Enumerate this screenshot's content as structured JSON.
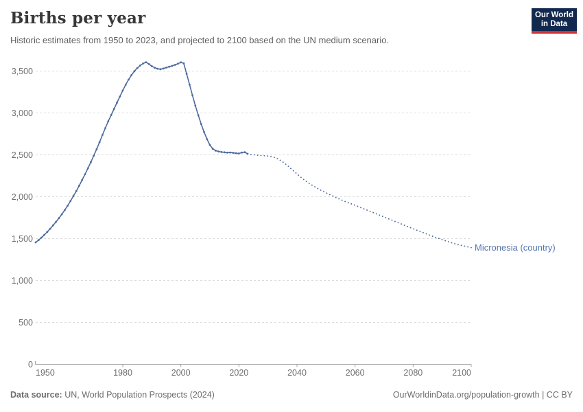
{
  "header": {
    "title": "Births per year",
    "subtitle": "Historic estimates from 1950 to 2023, and projected to 2100 based on the UN medium scenario.",
    "logo": {
      "line1": "Our World",
      "line2": "in Data"
    }
  },
  "footer": {
    "source_label": "Data source:",
    "source_text": " UN, World Population Prospects (2024)",
    "right_text": "OurWorldinData.org/population-growth | CC BY"
  },
  "chart_data": {
    "type": "line",
    "title": "Births per year",
    "entity_label": "Micronesia (country)",
    "xlabel": "",
    "ylabel": "",
    "x_domain": [
      1950,
      2100
    ],
    "y_domain": [
      0,
      3500
    ],
    "grid": true,
    "legend_position": "end-of-line-label",
    "x_ticks": [
      1950,
      1980,
      2000,
      2020,
      2040,
      2060,
      2080,
      2100
    ],
    "y_ticks": [
      {
        "value": 0,
        "label": "0"
      },
      {
        "value": 500,
        "label": "500"
      },
      {
        "value": 1000,
        "label": "1,000"
      },
      {
        "value": 1500,
        "label": "1,500"
      },
      {
        "value": 2000,
        "label": "2,000"
      },
      {
        "value": 2500,
        "label": "2,500"
      },
      {
        "value": 3000,
        "label": "3,000"
      },
      {
        "value": 3500,
        "label": "3,500"
      }
    ],
    "colors": {
      "line": "#4c6a9c",
      "entity_label": "#5577ad",
      "grid": "#dcdcdc",
      "axis": "#a1a1a1",
      "tick_text": "#6e6e6e",
      "logo_bg": "#12294f",
      "logo_red": "#cf3235"
    },
    "series": [
      {
        "name": "historic",
        "style": "solid",
        "points": [
          [
            1950,
            1455
          ],
          [
            1951,
            1482
          ],
          [
            1952,
            1512
          ],
          [
            1953,
            1545
          ],
          [
            1954,
            1580
          ],
          [
            1955,
            1618
          ],
          [
            1956,
            1658
          ],
          [
            1957,
            1700
          ],
          [
            1958,
            1744
          ],
          [
            1959,
            1790
          ],
          [
            1960,
            1840
          ],
          [
            1961,
            1893
          ],
          [
            1962,
            1950
          ],
          [
            1963,
            2008
          ],
          [
            1964,
            2068
          ],
          [
            1965,
            2132
          ],
          [
            1966,
            2200
          ],
          [
            1967,
            2268
          ],
          [
            1968,
            2340
          ],
          [
            1969,
            2412
          ],
          [
            1970,
            2490
          ],
          [
            1971,
            2568
          ],
          [
            1972,
            2650
          ],
          [
            1973,
            2738
          ],
          [
            1974,
            2820
          ],
          [
            1975,
            2900
          ],
          [
            1976,
            2975
          ],
          [
            1977,
            3048
          ],
          [
            1978,
            3122
          ],
          [
            1979,
            3196
          ],
          [
            1980,
            3268
          ],
          [
            1981,
            3336
          ],
          [
            1982,
            3398
          ],
          [
            1983,
            3452
          ],
          [
            1984,
            3498
          ],
          [
            1985,
            3536
          ],
          [
            1986,
            3566
          ],
          [
            1987,
            3590
          ],
          [
            1988,
            3606
          ],
          [
            1989,
            3584
          ],
          [
            1990,
            3558
          ],
          [
            1991,
            3540
          ],
          [
            1992,
            3528
          ],
          [
            1993,
            3522
          ],
          [
            1994,
            3530
          ],
          [
            1995,
            3542
          ],
          [
            1996,
            3552
          ],
          [
            1997,
            3562
          ],
          [
            1998,
            3574
          ],
          [
            1999,
            3588
          ],
          [
            2000,
            3604
          ],
          [
            2001,
            3592
          ],
          [
            2002,
            3466
          ],
          [
            2003,
            3338
          ],
          [
            2004,
            3210
          ],
          [
            2005,
            3088
          ],
          [
            2006,
            2974
          ],
          [
            2007,
            2868
          ],
          [
            2008,
            2772
          ],
          [
            2009,
            2688
          ],
          [
            2010,
            2618
          ],
          [
            2011,
            2572
          ],
          [
            2012,
            2550
          ],
          [
            2013,
            2540
          ],
          [
            2014,
            2534
          ],
          [
            2015,
            2530
          ],
          [
            2016,
            2526
          ],
          [
            2017,
            2528
          ],
          [
            2018,
            2524
          ],
          [
            2019,
            2520
          ],
          [
            2020,
            2516
          ],
          [
            2021,
            2528
          ],
          [
            2022,
            2532
          ],
          [
            2023,
            2512
          ]
        ]
      },
      {
        "name": "projection",
        "style": "dotted",
        "points": [
          [
            2023,
            2512
          ],
          [
            2024,
            2506
          ],
          [
            2025,
            2501
          ],
          [
            2026,
            2497
          ],
          [
            2027,
            2494
          ],
          [
            2028,
            2491
          ],
          [
            2029,
            2489
          ],
          [
            2030,
            2486
          ],
          [
            2031,
            2481
          ],
          [
            2032,
            2472
          ],
          [
            2033,
            2458
          ],
          [
            2034,
            2440
          ],
          [
            2035,
            2418
          ],
          [
            2036,
            2392
          ],
          [
            2037,
            2364
          ],
          [
            2038,
            2334
          ],
          [
            2039,
            2303
          ],
          [
            2040,
            2272
          ],
          [
            2041,
            2242
          ],
          [
            2042,
            2214
          ],
          [
            2043,
            2188
          ],
          [
            2044,
            2164
          ],
          [
            2045,
            2142
          ],
          [
            2046,
            2121
          ],
          [
            2047,
            2101
          ],
          [
            2048,
            2082
          ],
          [
            2049,
            2064
          ],
          [
            2050,
            2047
          ],
          [
            2051,
            2030
          ],
          [
            2052,
            2014
          ],
          [
            2053,
            1998
          ],
          [
            2054,
            1982
          ],
          [
            2055,
            1966
          ],
          [
            2056,
            1951
          ],
          [
            2057,
            1937
          ],
          [
            2058,
            1924
          ],
          [
            2059,
            1911
          ],
          [
            2060,
            1898
          ],
          [
            2061,
            1884
          ],
          [
            2062,
            1870
          ],
          [
            2063,
            1856
          ],
          [
            2064,
            1842
          ],
          [
            2065,
            1828
          ],
          [
            2066,
            1814
          ],
          [
            2067,
            1800
          ],
          [
            2068,
            1786
          ],
          [
            2069,
            1772
          ],
          [
            2070,
            1758
          ],
          [
            2071,
            1744
          ],
          [
            2072,
            1730
          ],
          [
            2073,
            1716
          ],
          [
            2074,
            1702
          ],
          [
            2075,
            1688
          ],
          [
            2076,
            1674
          ],
          [
            2077,
            1660
          ],
          [
            2078,
            1646
          ],
          [
            2079,
            1632
          ],
          [
            2080,
            1618
          ],
          [
            2081,
            1604
          ],
          [
            2082,
            1590
          ],
          [
            2083,
            1577
          ],
          [
            2084,
            1564
          ],
          [
            2085,
            1551
          ],
          [
            2086,
            1538
          ],
          [
            2087,
            1525
          ],
          [
            2088,
            1512
          ],
          [
            2089,
            1500
          ],
          [
            2090,
            1488
          ],
          [
            2091,
            1476
          ],
          [
            2092,
            1464
          ],
          [
            2093,
            1453
          ],
          [
            2094,
            1443
          ],
          [
            2095,
            1433
          ],
          [
            2096,
            1424
          ],
          [
            2097,
            1416
          ],
          [
            2098,
            1408
          ],
          [
            2099,
            1400
          ],
          [
            2100,
            1393
          ]
        ]
      }
    ]
  }
}
